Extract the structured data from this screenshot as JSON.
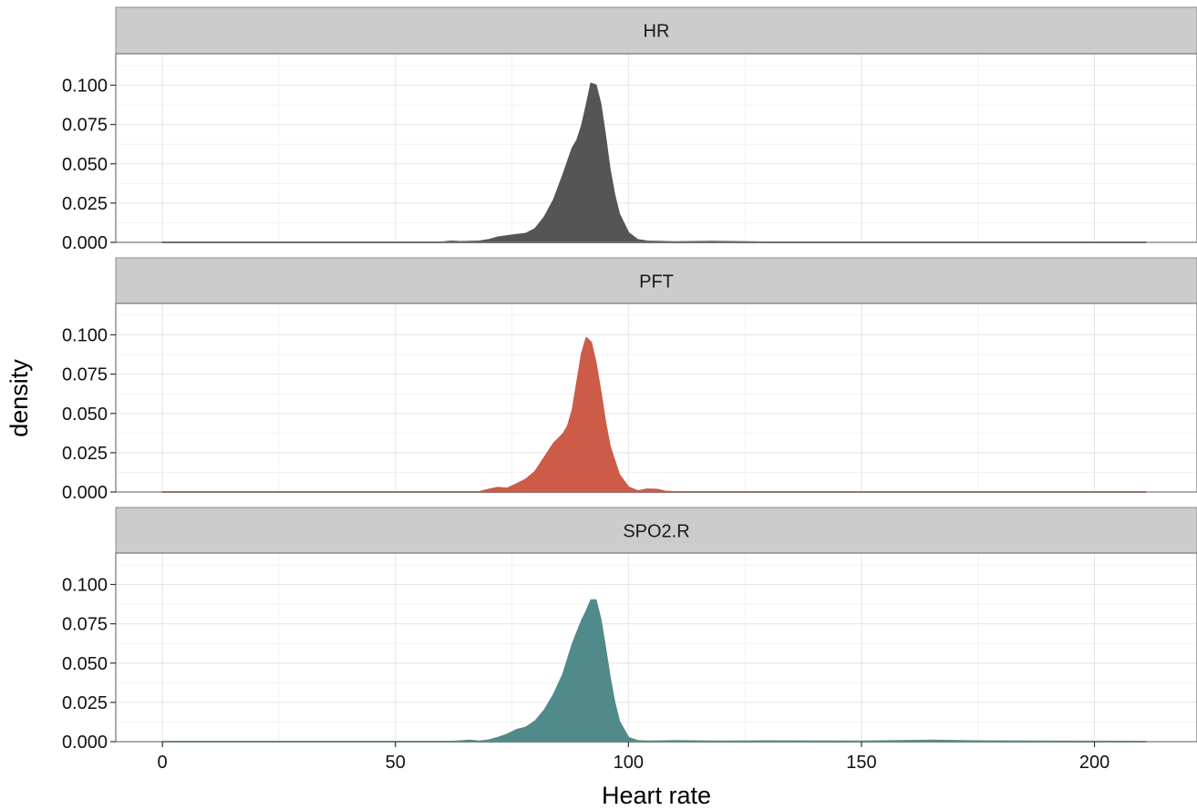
{
  "chart_data": {
    "type": "area",
    "xlabel": "Heart rate",
    "ylabel": "density",
    "xlim": [
      -10,
      222
    ],
    "ylim": [
      0,
      0.12
    ],
    "x_ticks": [
      0,
      50,
      100,
      150,
      200
    ],
    "x_tick_labels": [
      "0",
      "50",
      "100",
      "150",
      "200"
    ],
    "y_ticks": [
      0,
      0.025,
      0.05,
      0.075,
      0.1
    ],
    "y_tick_labels": [
      "0.000",
      "0.025",
      "0.050",
      "0.075",
      "0.100"
    ],
    "grid": true,
    "series": [
      {
        "name": "HR",
        "color": "#555555",
        "x": [
          0,
          60,
          62,
          64,
          66,
          68,
          70,
          72,
          74,
          76,
          78,
          80,
          82,
          84,
          86,
          88,
          89,
          90,
          91,
          92,
          93,
          94,
          95,
          96,
          97,
          98,
          100,
          102,
          104,
          106,
          110,
          118,
          130,
          211
        ],
        "y": [
          0,
          0,
          0.0006,
          0.0003,
          0.0004,
          0.0006,
          0.0015,
          0.0032,
          0.004,
          0.0048,
          0.0055,
          0.0085,
          0.016,
          0.027,
          0.043,
          0.06,
          0.065,
          0.074,
          0.087,
          0.101,
          0.1,
          0.088,
          0.068,
          0.046,
          0.03,
          0.018,
          0.006,
          0.0015,
          0.0006,
          0.0004,
          0.0002,
          0.0004,
          0,
          0
        ]
      },
      {
        "name": "PFT",
        "color": "#cc5c47",
        "x": [
          0,
          68,
          70,
          72,
          74,
          76,
          78,
          80,
          82,
          84,
          86,
          87,
          88,
          89,
          90,
          91,
          92,
          93,
          94,
          95,
          96,
          98,
          100,
          102,
          104,
          106,
          108,
          110,
          211
        ],
        "y": [
          0,
          0,
          0.0015,
          0.0028,
          0.0022,
          0.005,
          0.008,
          0.013,
          0.022,
          0.031,
          0.037,
          0.042,
          0.052,
          0.07,
          0.088,
          0.098,
          0.095,
          0.082,
          0.064,
          0.045,
          0.029,
          0.011,
          0.003,
          0.0005,
          0.0017,
          0.0015,
          0.0003,
          0,
          0
        ]
      },
      {
        "name": "SPO2.R",
        "color": "#508a8b",
        "x": [
          0,
          62,
          64,
          66,
          68,
          70,
          72,
          74,
          76,
          78,
          80,
          82,
          84,
          86,
          88,
          90,
          91,
          92,
          93,
          94,
          95,
          96,
          97,
          98,
          100,
          102,
          104,
          110,
          120,
          130,
          150,
          165,
          175,
          211
        ],
        "y": [
          0,
          0,
          0.0003,
          0.0007,
          0.0002,
          0.0008,
          0.0025,
          0.0045,
          0.0075,
          0.009,
          0.013,
          0.02,
          0.03,
          0.043,
          0.062,
          0.077,
          0.083,
          0.09,
          0.09,
          0.078,
          0.06,
          0.041,
          0.025,
          0.013,
          0.0025,
          0.0004,
          0.0002,
          0.0004,
          0.0002,
          0.0003,
          0.0002,
          0.0007,
          0.0003,
          0
        ]
      }
    ]
  }
}
